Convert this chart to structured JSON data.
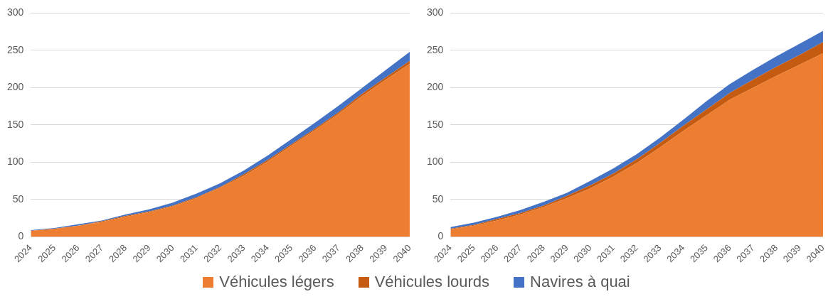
{
  "chart_data": [
    {
      "type": "area",
      "stacked": true,
      "categories": [
        "2024",
        "2025",
        "2026",
        "2027",
        "2028",
        "2029",
        "2030",
        "2031",
        "2032",
        "2033",
        "2034",
        "2035",
        "2036",
        "2037",
        "2038",
        "2039",
        "2040"
      ],
      "ylim": [
        0,
        300
      ],
      "yticks": [
        0,
        50,
        100,
        150,
        200,
        250,
        300
      ],
      "grid": "y",
      "legend": "bottom",
      "series": [
        {
          "name": "Véhicules légers",
          "color": "#ed7d31",
          "values": [
            8,
            11,
            15,
            20,
            27,
            33,
            41,
            52,
            66,
            82,
            101,
            122,
            143,
            165,
            189,
            211,
            232
          ]
        },
        {
          "name": "Véhicules lourds",
          "color": "#c55a11",
          "values": [
            0,
            0,
            0,
            1,
            1,
            1,
            1,
            1,
            1,
            2,
            2,
            2,
            2,
            2,
            3,
            3,
            4
          ]
        },
        {
          "name": "Navires à quai",
          "color": "#4472c4",
          "values": [
            1,
            1,
            2,
            1,
            2,
            3,
            4,
            5,
            5,
            5,
            6,
            7,
            8,
            9,
            8,
            10,
            12
          ]
        }
      ]
    },
    {
      "type": "area",
      "stacked": true,
      "categories": [
        "2024",
        "2025",
        "2026",
        "2027",
        "2028",
        "2029",
        "2030",
        "2031",
        "2032",
        "2033",
        "2034",
        "2035",
        "2036",
        "2037",
        "2038",
        "2039",
        "2040"
      ],
      "ylim": [
        0,
        300
      ],
      "yticks": [
        0,
        50,
        100,
        150,
        200,
        250,
        300
      ],
      "grid": "y",
      "series": [
        {
          "color": "#ed7d31",
          "values": [
            10,
            15,
            22,
            30,
            40,
            52,
            65,
            81,
            99,
            120,
            142,
            163,
            184,
            200,
            216,
            231,
            246
          ]
        },
        {
          "color": "#c55a11",
          "values": [
            1,
            1,
            2,
            2,
            2,
            3,
            4,
            4,
            5,
            6,
            7,
            8,
            9,
            11,
            12,
            13,
            15
          ]
        },
        {
          "color": "#4472c4",
          "values": [
            2,
            3,
            3,
            4,
            5,
            4,
            6,
            7,
            7,
            7,
            8,
            11,
            12,
            13,
            14,
            15,
            15
          ]
        }
      ]
    }
  ]
}
